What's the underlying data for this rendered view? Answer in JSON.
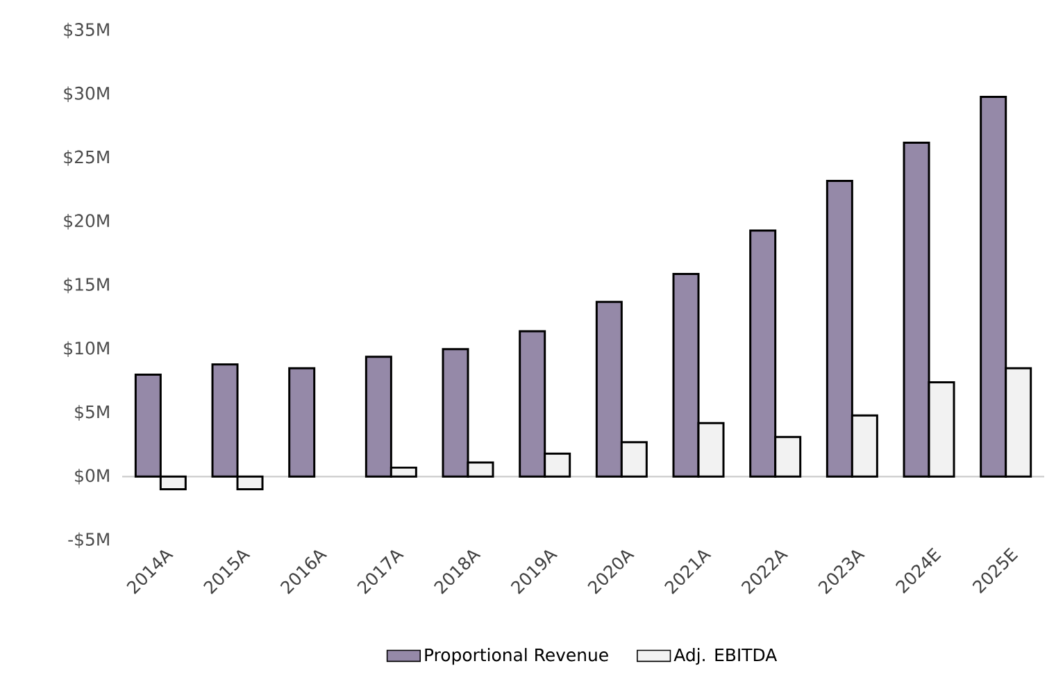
{
  "chart_data": {
    "type": "bar",
    "categories": [
      "2014A",
      "2015A",
      "2016A",
      "2017A",
      "2018A",
      "2019A",
      "2020A",
      "2021A",
      "2022A",
      "2023A",
      "2024E",
      "2025E"
    ],
    "series": [
      {
        "name": "Proportional Revenue",
        "color": "#9589a8",
        "values": [
          8.0,
          8.8,
          8.5,
          9.4,
          10.0,
          11.4,
          13.7,
          15.9,
          19.3,
          23.2,
          26.2,
          29.8
        ]
      },
      {
        "name": "Adj. EBITDA",
        "color": "#f2f2f2",
        "values": [
          -1.0,
          -1.0,
          null,
          0.7,
          1.1,
          1.8,
          2.7,
          4.2,
          3.1,
          4.8,
          7.4,
          8.5
        ]
      }
    ],
    "ylim": [
      -5,
      35
    ],
    "yticks": [
      {
        "value": -5,
        "label": "-$5M"
      },
      {
        "value": 0,
        "label": "$0M"
      },
      {
        "value": 5,
        "label": "$5M"
      },
      {
        "value": 10,
        "label": "$10M"
      },
      {
        "value": 15,
        "label": "$15M"
      },
      {
        "value": 20,
        "label": "$20M"
      },
      {
        "value": 25,
        "label": "$25M"
      },
      {
        "value": 30,
        "label": "$30M"
      },
      {
        "value": 35,
        "label": "$35M"
      }
    ],
    "legend": "bottom"
  }
}
